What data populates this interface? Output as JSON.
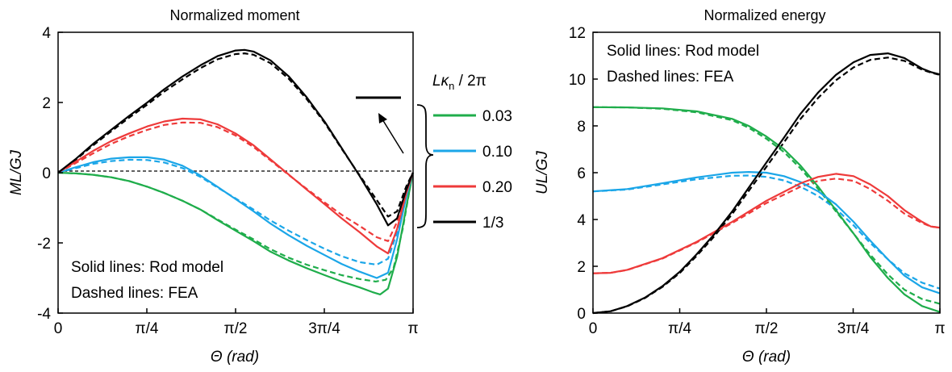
{
  "legend": {
    "title_main": "Lκ",
    "title_sub": "n",
    "title_tail": " / 2π",
    "entries": [
      {
        "label": "0.03",
        "color": "#1fad4b"
      },
      {
        "label": "0.10",
        "color": "#1ba6e8"
      },
      {
        "label": "0.20",
        "color": "#ee3a3a"
      },
      {
        "label": "1/3",
        "color": "#000000"
      }
    ]
  },
  "colors": {
    "green": "#1fad4b",
    "blue": "#1ba6e8",
    "red": "#ee3a3a",
    "black": "#000000"
  },
  "chart_data": [
    {
      "type": "line",
      "title": "Normalized moment",
      "xlabel": "Θ (rad)",
      "ylabel": "ML/GJ",
      "xlim": [
        0,
        3.1416
      ],
      "ylim": [
        -4,
        4
      ],
      "xticks": [
        0,
        0.7854,
        1.5708,
        2.3562,
        3.1416
      ],
      "xtick_labels": [
        "0",
        "π/4",
        "π/2",
        "3π/4",
        "π"
      ],
      "yticks": [
        -4,
        -2,
        0,
        2,
        4
      ],
      "ytick_labels": [
        "-4",
        "-2",
        "0",
        "2",
        "4"
      ],
      "annotations": [
        "Solid lines: Rod model",
        "Dashed lines: FEA"
      ],
      "zero_line": true,
      "series": [
        {
          "name": "0.03",
          "color": "#1fad4b",
          "style": "solid",
          "x": [
            0,
            0.16,
            0.31,
            0.47,
            0.63,
            0.79,
            0.94,
            1.1,
            1.26,
            1.41,
            1.57,
            1.73,
            1.88,
            2.04,
            2.2,
            2.36,
            2.51,
            2.67,
            2.78,
            2.85,
            2.92,
            3.0,
            3.08,
            3.14
          ],
          "y": [
            0,
            -0.02,
            -0.06,
            -0.13,
            -0.24,
            -0.4,
            -0.58,
            -0.8,
            -1.05,
            -1.35,
            -1.65,
            -1.95,
            -2.25,
            -2.5,
            -2.72,
            -2.92,
            -3.1,
            -3.27,
            -3.4,
            -3.47,
            -3.3,
            -2.4,
            -1.0,
            0
          ]
        },
        {
          "name": "0.03",
          "color": "#1fad4b",
          "style": "dashed",
          "x": [
            0,
            0.16,
            0.31,
            0.47,
            0.63,
            0.79,
            0.94,
            1.1,
            1.26,
            1.41,
            1.57,
            1.73,
            1.88,
            2.04,
            2.2,
            2.36,
            2.51,
            2.67,
            2.81,
            2.9,
            2.97,
            3.05,
            3.11,
            3.14
          ],
          "y": [
            0,
            -0.02,
            -0.06,
            -0.13,
            -0.24,
            -0.4,
            -0.58,
            -0.8,
            -1.05,
            -1.33,
            -1.62,
            -1.9,
            -2.18,
            -2.42,
            -2.62,
            -2.78,
            -2.92,
            -3.03,
            -3.1,
            -3.05,
            -2.7,
            -1.6,
            -0.5,
            0
          ]
        },
        {
          "name": "0.10",
          "color": "#1ba6e8",
          "style": "solid",
          "x": [
            0,
            0.16,
            0.31,
            0.47,
            0.63,
            0.79,
            0.94,
            1.1,
            1.26,
            1.41,
            1.57,
            1.73,
            1.88,
            2.04,
            2.2,
            2.36,
            2.51,
            2.67,
            2.82,
            2.92,
            3.0,
            3.08,
            3.14
          ],
          "y": [
            0,
            0.16,
            0.3,
            0.4,
            0.44,
            0.44,
            0.37,
            0.2,
            -0.08,
            -0.4,
            -0.75,
            -1.1,
            -1.45,
            -1.78,
            -2.08,
            -2.35,
            -2.6,
            -2.82,
            -3.0,
            -2.85,
            -1.9,
            -0.7,
            0
          ]
        },
        {
          "name": "0.10",
          "color": "#1ba6e8",
          "style": "dashed",
          "x": [
            0,
            0.16,
            0.31,
            0.47,
            0.63,
            0.79,
            0.94,
            1.1,
            1.26,
            1.41,
            1.57,
            1.73,
            1.88,
            2.04,
            2.2,
            2.36,
            2.51,
            2.67,
            2.82,
            2.92,
            3.0,
            3.08,
            3.14
          ],
          "y": [
            0,
            0.13,
            0.25,
            0.33,
            0.37,
            0.36,
            0.29,
            0.13,
            -0.12,
            -0.42,
            -0.73,
            -1.05,
            -1.36,
            -1.65,
            -1.92,
            -2.17,
            -2.38,
            -2.55,
            -2.62,
            -2.45,
            -1.7,
            -0.6,
            0
          ]
        },
        {
          "name": "0.20",
          "color": "#ee3a3a",
          "style": "solid",
          "x": [
            0,
            0.16,
            0.31,
            0.47,
            0.63,
            0.79,
            0.94,
            1.1,
            1.26,
            1.41,
            1.57,
            1.73,
            1.88,
            2.04,
            2.2,
            2.36,
            2.51,
            2.67,
            2.82,
            2.92,
            3.0,
            3.08,
            3.14
          ],
          "y": [
            0,
            0.32,
            0.62,
            0.9,
            1.12,
            1.32,
            1.46,
            1.54,
            1.52,
            1.38,
            1.12,
            0.78,
            0.38,
            -0.05,
            -0.48,
            -0.9,
            -1.3,
            -1.7,
            -2.1,
            -2.3,
            -1.6,
            -0.6,
            0
          ]
        },
        {
          "name": "0.20",
          "color": "#ee3a3a",
          "style": "dashed",
          "x": [
            0,
            0.16,
            0.31,
            0.47,
            0.63,
            0.79,
            0.94,
            1.1,
            1.26,
            1.41,
            1.57,
            1.73,
            1.88,
            2.04,
            2.2,
            2.36,
            2.51,
            2.67,
            2.82,
            2.92,
            3.0,
            3.08,
            3.14
          ],
          "y": [
            0,
            0.28,
            0.55,
            0.82,
            1.04,
            1.22,
            1.36,
            1.43,
            1.42,
            1.3,
            1.06,
            0.73,
            0.35,
            -0.06,
            -0.46,
            -0.85,
            -1.2,
            -1.52,
            -1.84,
            -1.95,
            -1.4,
            -0.5,
            0
          ]
        },
        {
          "name": "1/3",
          "color": "#000000",
          "style": "solid",
          "x": [
            0,
            0.16,
            0.31,
            0.47,
            0.63,
            0.79,
            0.94,
            1.1,
            1.26,
            1.41,
            1.57,
            1.65,
            1.73,
            1.88,
            2.04,
            2.2,
            2.36,
            2.51,
            2.67,
            2.82,
            2.92,
            3.0,
            3.08,
            3.14
          ],
          "y": [
            0,
            0.4,
            0.82,
            1.22,
            1.62,
            2.0,
            2.38,
            2.74,
            3.06,
            3.32,
            3.48,
            3.5,
            3.45,
            3.2,
            2.75,
            2.15,
            1.45,
            0.7,
            -0.1,
            -0.9,
            -1.5,
            -1.3,
            -0.5,
            0
          ]
        },
        {
          "name": "1/3",
          "color": "#000000",
          "style": "dashed",
          "x": [
            0,
            0.16,
            0.31,
            0.47,
            0.63,
            0.79,
            0.94,
            1.1,
            1.26,
            1.41,
            1.57,
            1.65,
            1.73,
            1.88,
            2.04,
            2.2,
            2.36,
            2.51,
            2.67,
            2.82,
            2.92,
            3.0,
            3.08,
            3.14
          ],
          "y": [
            0,
            0.38,
            0.78,
            1.18,
            1.57,
            1.94,
            2.31,
            2.66,
            2.98,
            3.23,
            3.38,
            3.4,
            3.36,
            3.12,
            2.68,
            2.1,
            1.42,
            0.68,
            -0.08,
            -0.78,
            -1.25,
            -1.1,
            -0.4,
            0
          ]
        }
      ]
    },
    {
      "type": "line",
      "title": "Normalized energy",
      "xlabel": "Θ (rad)",
      "ylabel": "UL/GJ",
      "xlim": [
        0,
        3.1416
      ],
      "ylim": [
        0,
        12
      ],
      "xticks": [
        0,
        0.7854,
        1.5708,
        2.3562,
        3.1416
      ],
      "xtick_labels": [
        "0",
        "π/4",
        "π/2",
        "3π/4",
        "π"
      ],
      "yticks": [
        0,
        2,
        4,
        6,
        8,
        10,
        12
      ],
      "ytick_labels": [
        "0",
        "2",
        "4",
        "6",
        "8",
        "10",
        "12"
      ],
      "annotations": [
        "Solid lines: Rod model",
        "Dashed lines: FEA"
      ],
      "series": [
        {
          "name": "0.03",
          "color": "#1fad4b",
          "style": "solid",
          "x": [
            0,
            0.31,
            0.63,
            0.94,
            1.26,
            1.41,
            1.57,
            1.73,
            1.88,
            2.04,
            2.2,
            2.36,
            2.51,
            2.67,
            2.82,
            2.98,
            3.14
          ],
          "y": [
            8.8,
            8.79,
            8.75,
            8.62,
            8.3,
            8.0,
            7.55,
            7.0,
            6.3,
            5.4,
            4.4,
            3.4,
            2.4,
            1.5,
            0.8,
            0.3,
            0.05
          ]
        },
        {
          "name": "0.03",
          "color": "#1fad4b",
          "style": "dashed",
          "x": [
            0,
            0.31,
            0.63,
            0.94,
            1.26,
            1.41,
            1.57,
            1.73,
            1.88,
            2.04,
            2.2,
            2.36,
            2.51,
            2.67,
            2.82,
            2.98,
            3.14
          ],
          "y": [
            8.8,
            8.79,
            8.73,
            8.58,
            8.24,
            7.92,
            7.45,
            6.88,
            6.18,
            5.3,
            4.35,
            3.4,
            2.5,
            1.65,
            1.0,
            0.6,
            0.4
          ]
        },
        {
          "name": "0.10",
          "color": "#1ba6e8",
          "style": "solid",
          "x": [
            0,
            0.31,
            0.63,
            0.94,
            1.26,
            1.41,
            1.57,
            1.73,
            1.88,
            2.04,
            2.2,
            2.36,
            2.51,
            2.67,
            2.82,
            2.98,
            3.14
          ],
          "y": [
            5.2,
            5.3,
            5.55,
            5.8,
            6.0,
            6.03,
            6.0,
            5.85,
            5.6,
            5.2,
            4.65,
            3.9,
            3.1,
            2.3,
            1.6,
            1.1,
            0.85
          ]
        },
        {
          "name": "0.10",
          "color": "#1ba6e8",
          "style": "dashed",
          "x": [
            0,
            0.31,
            0.63,
            0.94,
            1.26,
            1.41,
            1.57,
            1.73,
            1.88,
            2.04,
            2.2,
            2.36,
            2.51,
            2.67,
            2.82,
            2.98,
            3.14
          ],
          "y": [
            5.2,
            5.28,
            5.5,
            5.72,
            5.87,
            5.88,
            5.82,
            5.67,
            5.4,
            5.0,
            4.45,
            3.75,
            3.0,
            2.3,
            1.7,
            1.3,
            1.05
          ]
        },
        {
          "name": "0.20",
          "color": "#ee3a3a",
          "style": "solid",
          "x": [
            0,
            0.16,
            0.31,
            0.63,
            0.94,
            1.26,
            1.57,
            1.88,
            2.04,
            2.2,
            2.36,
            2.51,
            2.67,
            2.82,
            2.98,
            3.06,
            3.14
          ],
          "y": [
            1.7,
            1.72,
            1.85,
            2.35,
            3.05,
            3.9,
            4.8,
            5.55,
            5.82,
            5.95,
            5.85,
            5.5,
            5.0,
            4.4,
            3.9,
            3.7,
            3.65
          ]
        },
        {
          "name": "0.20",
          "color": "#ee3a3a",
          "style": "dashed",
          "x": [
            0,
            0.16,
            0.31,
            0.63,
            0.94,
            1.26,
            1.57,
            1.88,
            2.04,
            2.2,
            2.36,
            2.51,
            2.67,
            2.82,
            2.98,
            3.06,
            3.14
          ],
          "y": [
            1.7,
            1.72,
            1.84,
            2.33,
            3.02,
            3.85,
            4.7,
            5.4,
            5.65,
            5.75,
            5.65,
            5.3,
            4.8,
            4.25,
            3.85,
            3.7,
            3.65
          ]
        },
        {
          "name": "1/3",
          "color": "#000000",
          "style": "solid",
          "x": [
            0,
            0.16,
            0.31,
            0.47,
            0.63,
            0.79,
            0.94,
            1.1,
            1.26,
            1.41,
            1.57,
            1.73,
            1.88,
            2.04,
            2.2,
            2.36,
            2.51,
            2.67,
            2.82,
            2.98,
            3.06,
            3.14
          ],
          "y": [
            0,
            0.08,
            0.3,
            0.66,
            1.15,
            1.78,
            2.52,
            3.38,
            4.34,
            5.36,
            6.43,
            7.5,
            8.52,
            9.43,
            10.18,
            10.72,
            11.03,
            11.1,
            10.9,
            10.45,
            10.3,
            10.2
          ]
        },
        {
          "name": "1/3",
          "color": "#000000",
          "style": "dashed",
          "x": [
            0,
            0.16,
            0.31,
            0.47,
            0.63,
            0.79,
            0.94,
            1.1,
            1.26,
            1.41,
            1.57,
            1.73,
            1.88,
            2.04,
            2.2,
            2.36,
            2.51,
            2.67,
            2.82,
            2.98,
            3.06,
            3.14
          ],
          "y": [
            0,
            0.08,
            0.29,
            0.64,
            1.12,
            1.73,
            2.45,
            3.29,
            4.23,
            5.22,
            6.25,
            7.3,
            8.3,
            9.2,
            9.95,
            10.5,
            10.82,
            10.92,
            10.78,
            10.4,
            10.28,
            10.18
          ]
        }
      ]
    }
  ]
}
